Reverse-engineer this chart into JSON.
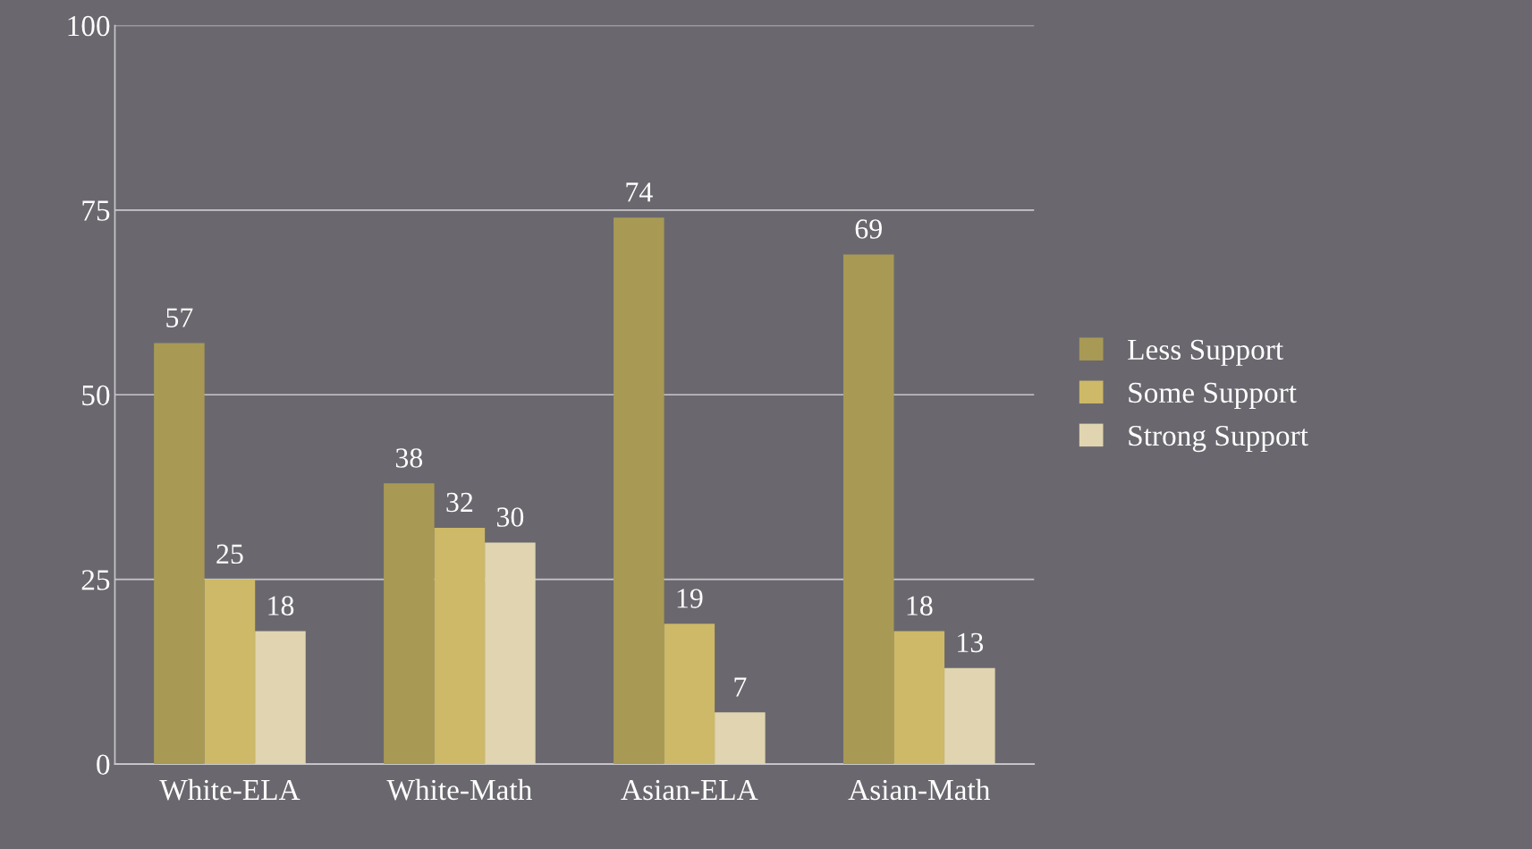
{
  "chart_data": {
    "type": "bar",
    "categories": [
      "White-ELA",
      "White-Math",
      "Asian-ELA",
      "Asian-Math"
    ],
    "series": [
      {
        "name": "Less Support",
        "color": "#a89a55",
        "values": [
          57,
          38,
          74,
          69
        ]
      },
      {
        "name": "Some Support",
        "color": "#cdb967",
        "values": [
          25,
          32,
          19,
          18
        ]
      },
      {
        "name": "Strong Support",
        "color": "#e0d5b0",
        "values": [
          18,
          30,
          7,
          13
        ]
      }
    ],
    "ylim": [
      0,
      100
    ],
    "yticks": [
      0,
      25,
      50,
      75,
      100
    ],
    "grid": "y",
    "legend": "right",
    "data_labels": true
  }
}
